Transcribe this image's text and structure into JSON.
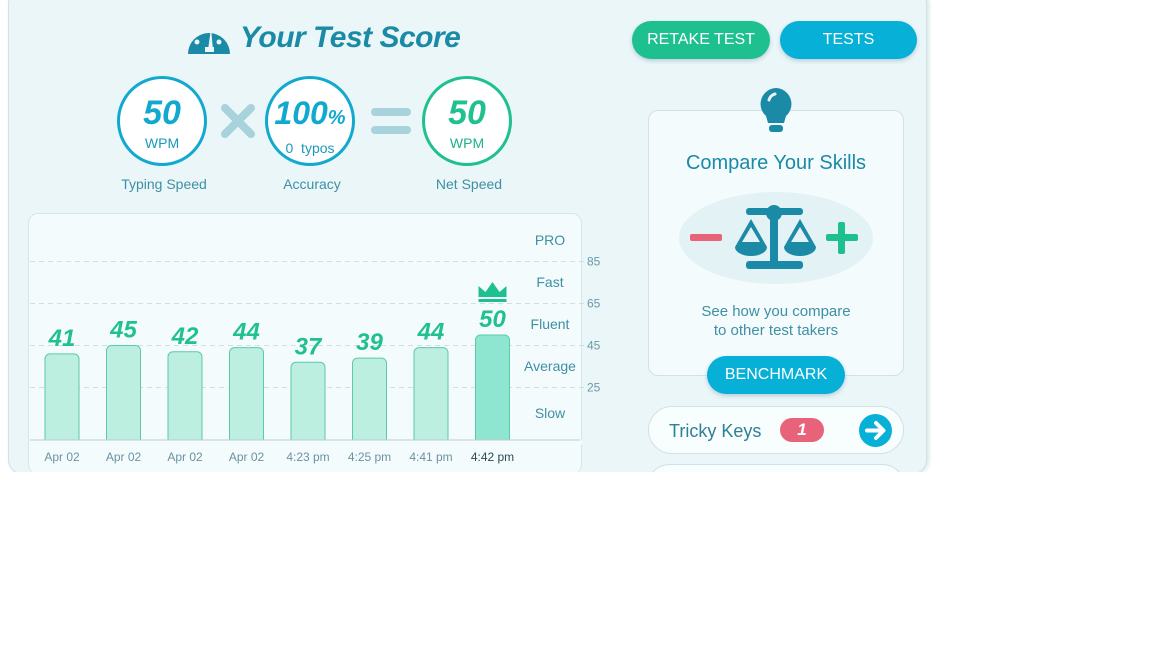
{
  "header": {
    "title": "Your Test Score",
    "icon": "speedometer-icon"
  },
  "buttons": {
    "retake": "RETAKE TEST",
    "tests": "TESTS",
    "benchmark": "BENCHMARK"
  },
  "scores": {
    "typing_speed": {
      "value": "50",
      "unit": "WPM",
      "label": "Typing Speed"
    },
    "accuracy": {
      "value": "100",
      "suffix": "%",
      "sub": "0  typos",
      "label": "Accuracy"
    },
    "net_speed": {
      "value": "50",
      "unit": "WPM",
      "label": "Net Speed"
    }
  },
  "chart_data": {
    "type": "bar",
    "categories": [
      "Apr 02",
      "Apr 02",
      "Apr 02",
      "Apr 02",
      "4:23 pm",
      "4:25 pm",
      "4:41 pm",
      "4:42 pm"
    ],
    "values": [
      41,
      45,
      42,
      44,
      37,
      39,
      44,
      50
    ],
    "highlight_index": 7,
    "y_ticks": [
      25,
      45,
      65,
      85
    ],
    "bands": [
      "PRO",
      "Fast",
      "Fluent",
      "Average",
      "Slow"
    ],
    "ylim": [
      0,
      105
    ],
    "grid": true,
    "colors": {
      "bar": "#bcefe0",
      "bar_highlight": "#8fe6d0",
      "label": "#20c090"
    }
  },
  "compare": {
    "title": "Compare Your Skills",
    "text1": "See how you compare",
    "text2": "to other test takers"
  },
  "tricky": {
    "label": "Tricky Keys",
    "count": "1"
  },
  "colors": {
    "teal": "#1a8aa6",
    "blue": "#07b0d6",
    "green": "#1fc090",
    "red": "#e8627a"
  }
}
